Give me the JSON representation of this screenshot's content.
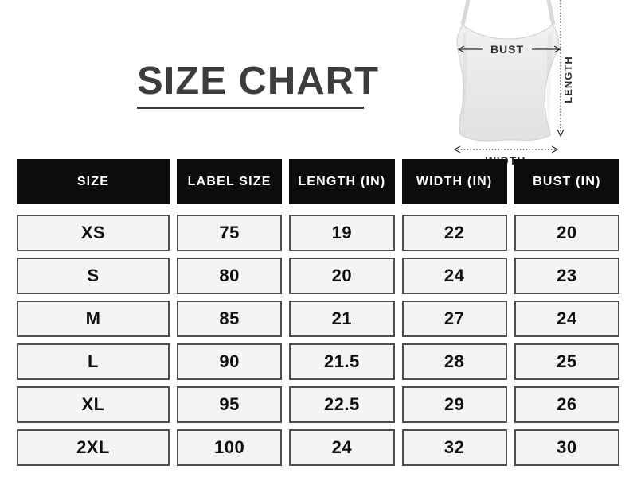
{
  "title": "SIZE CHART",
  "garment": {
    "bust_label": "BUST",
    "length_label": "LENGTH",
    "width_label": "WIDTH"
  },
  "chart_data": {
    "type": "table",
    "title": "SIZE CHART",
    "columns": [
      "SIZE",
      "LABEL SIZE",
      "LENGTH (IN)",
      "WIDTH (IN)",
      "BUST (IN)"
    ],
    "rows": [
      [
        "XS",
        "75",
        "19",
        "22",
        "20"
      ],
      [
        "S",
        "80",
        "20",
        "24",
        "23"
      ],
      [
        "M",
        "85",
        "21",
        "27",
        "24"
      ],
      [
        "L",
        "90",
        "21.5",
        "28",
        "25"
      ],
      [
        "XL",
        "95",
        "22.5",
        "29",
        "26"
      ],
      [
        "2XL",
        "100",
        "24",
        "32",
        "30"
      ]
    ]
  },
  "colors": {
    "background": "#ffffff",
    "title": "#3d3d3d",
    "header_bg": "#0c0c0c",
    "header_text": "#ffffff",
    "cell_bg": "#f4f4f4",
    "cell_border": "#4f4f4f",
    "annotation": "#2e2e2e",
    "garment_fill": "#e9e9e9"
  }
}
